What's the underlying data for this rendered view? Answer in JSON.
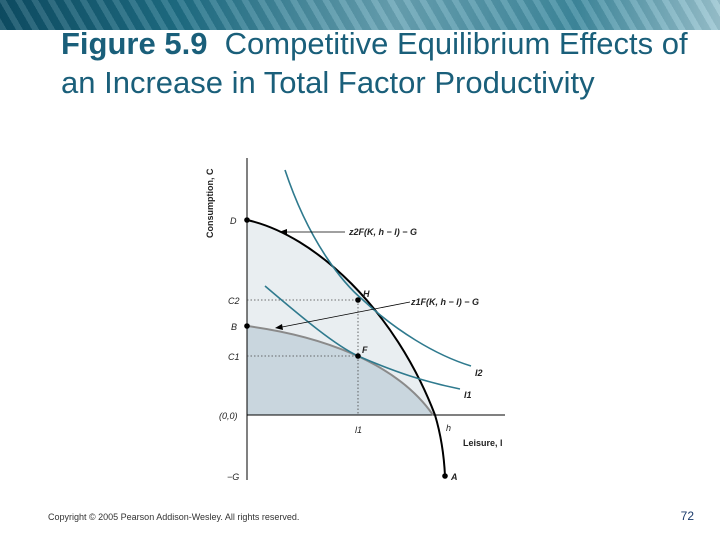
{
  "slide": {
    "title_num": "Figure 5.9",
    "title_text": "Competitive Equilibrium Effects of an Increase in Total Factor Productivity",
    "copyright": "Copyright © 2005 Pearson Addison-Wesley. All rights reserved.",
    "page_number": "72"
  },
  "diagram": {
    "y_axis_label": "Consumption, C",
    "x_axis_label": "Leisure, l",
    "origin_label": "(0,0)",
    "y_ticks": {
      "D": "D",
      "C2": "C2",
      "B": "B",
      "C1": "C1",
      "negG": "−G"
    },
    "x_ticks": {
      "l1": "l1",
      "h": "h"
    },
    "points": {
      "H": "H",
      "F": "F",
      "A": "A"
    },
    "curve_labels": {
      "ppf2": "z2F(K, h − l) − G",
      "ppf1": "z1F(K, h − l) − G",
      "I2": "I2",
      "I1": "I1"
    },
    "colors": {
      "outer_region": "#e9eef1",
      "inner_region": "#c9d6de",
      "indifference": "#2f7a8e",
      "ppf_new": "#000000",
      "ppf_old": "#8a8a8a",
      "title": "#1a5f7a"
    }
  }
}
